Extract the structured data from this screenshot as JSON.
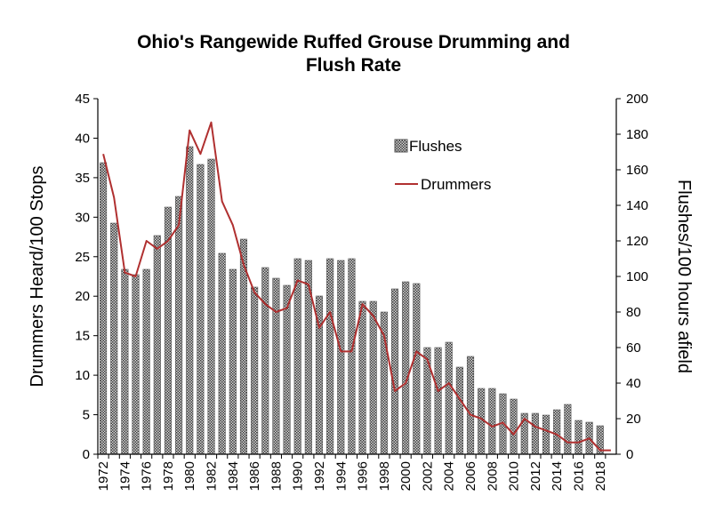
{
  "chart_data": {
    "type": "bar+line",
    "title_line1": "Ohio's Rangewide Ruffed Grouse Drumming and",
    "title_line2": "Flush Rate",
    "ylabel_left": "Drummers Heard/100 Stops",
    "ylabel_right": "Flushes/100 hours afield",
    "ylim_left": [
      0,
      45
    ],
    "ylim_right": [
      0,
      200
    ],
    "yticks_left": [
      "0",
      "5",
      "10",
      "15",
      "20",
      "25",
      "30",
      "35",
      "40",
      "45"
    ],
    "yticks_right": [
      "0",
      "20",
      "40",
      "60",
      "80",
      "100",
      "120",
      "140",
      "160",
      "180",
      "200"
    ],
    "years": [
      1972,
      1973,
      1974,
      1975,
      1976,
      1977,
      1978,
      1979,
      1980,
      1981,
      1982,
      1983,
      1984,
      1985,
      1986,
      1987,
      1988,
      1989,
      1990,
      1991,
      1992,
      1993,
      1994,
      1995,
      1996,
      1997,
      1998,
      1999,
      2000,
      2001,
      2002,
      2003,
      2004,
      2005,
      2006,
      2007,
      2008,
      2009,
      2010,
      2011,
      2012,
      2013,
      2014,
      2015,
      2016,
      2017,
      2018,
      2019
    ],
    "xtick_labels": [
      "1972",
      "1974",
      "1976",
      "1978",
      "1980",
      "1982",
      "1984",
      "1986",
      "1988",
      "1990",
      "1992",
      "1994",
      "1996",
      "1998",
      "2000",
      "2002",
      "2004",
      "2006",
      "2008",
      "2010",
      "2012",
      "2014",
      "2016",
      "2018"
    ],
    "legend_placement": "top-right",
    "grid": false,
    "series": [
      {
        "name": "Flushes",
        "kind": "bar",
        "axis": "right",
        "color": "#8c8c8c",
        "values": [
          164,
          130,
          104,
          101,
          104,
          123,
          139,
          145,
          173,
          163,
          166,
          113,
          104,
          121,
          94,
          105,
          99,
          95,
          110,
          109,
          89,
          110,
          109,
          110,
          86,
          86,
          80,
          93,
          97,
          96,
          60,
          60,
          63,
          49,
          55,
          37,
          37,
          34,
          31,
          23,
          23,
          22,
          25,
          28,
          19,
          18,
          16,
          null
        ]
      },
      {
        "name": "Drummers",
        "kind": "line",
        "axis": "left",
        "color": "#b03030",
        "values": [
          38,
          32.5,
          23,
          22.5,
          27,
          26,
          27,
          29,
          41,
          38,
          42,
          32,
          29,
          24,
          20.5,
          19,
          18,
          18.5,
          22,
          21.5,
          16,
          18,
          13,
          13,
          19,
          17.5,
          15,
          8,
          9,
          13,
          12,
          8,
          9,
          7,
          5,
          4.5,
          3.5,
          4,
          2.5,
          4.5,
          3.5,
          3,
          2.5,
          1.5,
          1.5,
          2,
          0.5,
          0.5
        ]
      }
    ]
  }
}
